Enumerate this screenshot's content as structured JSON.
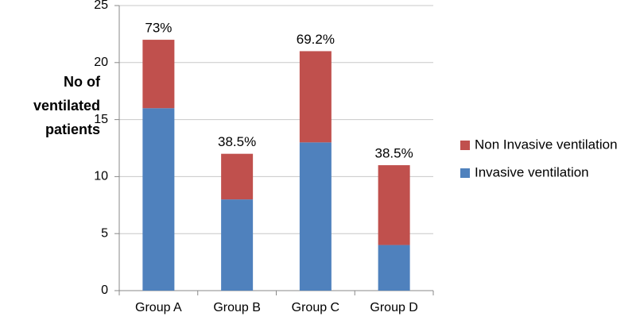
{
  "chart_data": {
    "type": "stacked_bar",
    "ylabel": "No of ventilated patients",
    "categories": [
      "Group A",
      "Group B",
      "Group C",
      "Group D"
    ],
    "series": [
      {
        "name": "Invasive ventilation",
        "color": "#4f81bd",
        "values": [
          16,
          8,
          13,
          4
        ]
      },
      {
        "name": "Non Invasive ventilation",
        "color": "#c0504d",
        "values": [
          6,
          4,
          8,
          7
        ]
      }
    ],
    "annotations": [
      "73%",
      "38.5%",
      "69.2%",
      "38.5%"
    ],
    "ylim": [
      0,
      25
    ],
    "yticks": [
      0,
      5,
      10,
      15,
      20,
      25
    ],
    "grid": true,
    "legend": "right"
  }
}
